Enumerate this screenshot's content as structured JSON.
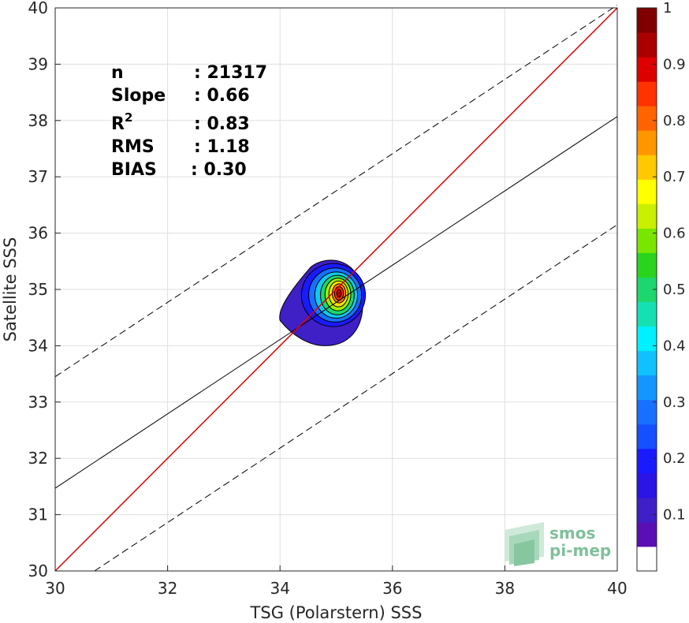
{
  "chart_data": {
    "type": "heatmap",
    "xlabel": "TSG (Polarstern) SSS",
    "ylabel": "Satellite SSS",
    "xlim": [
      30,
      40
    ],
    "ylim": [
      30,
      40
    ],
    "xticks": [
      "30",
      "32",
      "34",
      "36",
      "38",
      "40"
    ],
    "yticks": [
      "30",
      "31",
      "32",
      "33",
      "34",
      "35",
      "36",
      "37",
      "38",
      "39",
      "40"
    ],
    "grid": true,
    "stats": [
      {
        "label": "n",
        "value": ": 21317"
      },
      {
        "label": "Slope",
        "value": ": 0.66"
      },
      {
        "label": "R",
        "sup": "2",
        "value": ": 0.83"
      },
      {
        "label": "RMS",
        "value": ": 1.18"
      },
      {
        "label": "BIAS",
        "value": ": 0.30"
      }
    ],
    "lines": {
      "identity": {
        "x": [
          30,
          40
        ],
        "y": [
          30,
          40
        ],
        "color": "#e00000"
      },
      "fit": {
        "x": [
          30,
          40
        ],
        "y": [
          31.47,
          38.07
        ],
        "color": "#000000"
      },
      "fit_upper": {
        "x": [
          30,
          40
        ],
        "y": [
          33.45,
          40.05
        ],
        "style": "dashed"
      },
      "fit_lower": {
        "x": [
          30.7,
          40
        ],
        "y": [
          30.0,
          36.15
        ],
        "style": "dashed"
      }
    },
    "density": {
      "peak": {
        "x": 35.05,
        "y": 34.9
      },
      "levels": [
        {
          "level": 0.05,
          "color": "#3f1fc6",
          "rx": 0.78,
          "ry": 0.6,
          "cx": 34.7,
          "cy": 34.75
        },
        {
          "level": 0.15,
          "color": "#1a1aff",
          "rx": 0.57,
          "ry": 0.56,
          "cx": 34.95,
          "cy": 34.9
        },
        {
          "level": 0.25,
          "color": "#1770ff",
          "rx": 0.47,
          "ry": 0.48,
          "cx": 34.98,
          "cy": 34.9
        },
        {
          "level": 0.35,
          "color": "#11c8ee",
          "rx": 0.38,
          "ry": 0.41,
          "cx": 35.0,
          "cy": 34.9
        },
        {
          "level": 0.45,
          "color": "#1ed66e",
          "rx": 0.3,
          "ry": 0.35,
          "cx": 35.02,
          "cy": 34.9
        },
        {
          "level": 0.55,
          "color": "#a0f000",
          "rx": 0.23,
          "ry": 0.29,
          "cx": 35.03,
          "cy": 34.91
        },
        {
          "level": 0.65,
          "color": "#ffe000",
          "rx": 0.17,
          "ry": 0.23,
          "cx": 35.04,
          "cy": 34.92
        },
        {
          "level": 0.75,
          "color": "#ff8000",
          "rx": 0.12,
          "ry": 0.17,
          "cx": 35.05,
          "cy": 34.93
        },
        {
          "level": 0.85,
          "color": "#ff2a00",
          "rx": 0.08,
          "ry": 0.12,
          "cx": 35.05,
          "cy": 34.93
        },
        {
          "level": 0.95,
          "color": "#b40000",
          "rx": 0.04,
          "ry": 0.07,
          "cx": 35.05,
          "cy": 34.93
        }
      ]
    },
    "colorbar": {
      "ticks": [
        "0.1",
        "0.2",
        "0.3",
        "0.4",
        "0.5",
        "0.6",
        "0.7",
        "0.8",
        "0.9",
        "1"
      ],
      "range": [
        0,
        1
      ],
      "colors": [
        "#ffffff",
        "#5a0fb4",
        "#3f1fc6",
        "#2a14e6",
        "#1a1aff",
        "#1450ff",
        "#1770ff",
        "#1496ff",
        "#11c0ff",
        "#00f0ff",
        "#15e0b4",
        "#1ed66e",
        "#2ad41e",
        "#78e600",
        "#c8f000",
        "#ffff00",
        "#ffc800",
        "#ff9600",
        "#ff6400",
        "#ff3200",
        "#dd0000",
        "#aa0000",
        "#800000"
      ]
    }
  },
  "logo": {
    "line1": "smos",
    "line2": "pi-mep"
  }
}
